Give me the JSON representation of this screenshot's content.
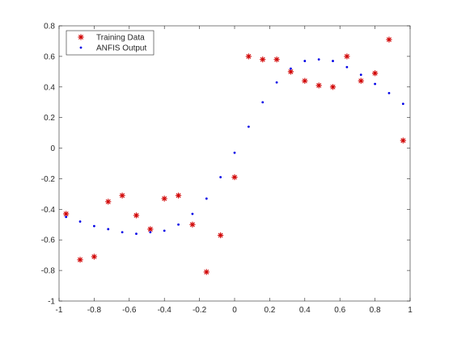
{
  "chart_data": {
    "type": "scatter",
    "title": "",
    "xlabel": "",
    "ylabel": "",
    "xlim": [
      -1,
      1
    ],
    "ylim": [
      -1,
      0.8
    ],
    "xticks": [
      -1,
      -0.8,
      -0.6,
      -0.4,
      -0.2,
      0,
      0.2,
      0.4,
      0.6,
      0.8,
      1
    ],
    "xtick_labels": [
      "-1",
      "-0.8",
      "-0.6",
      "-0.4",
      "-0.2",
      "0",
      "0.2",
      "0.4",
      "0.6",
      "0.8",
      "1"
    ],
    "yticks": [
      -1,
      -0.8,
      -0.6,
      -0.4,
      -0.2,
      0,
      0.2,
      0.4,
      0.6,
      0.8
    ],
    "ytick_labels": [
      "-1",
      "-0.8",
      "-0.6",
      "-0.4",
      "-0.2",
      "0",
      "0.2",
      "0.4",
      "0.6",
      "0.8"
    ],
    "grid": false,
    "legend_position": "top-left",
    "series": [
      {
        "name": "Training Data",
        "marker": "asterisk",
        "color": "#d00000",
        "x": [
          -0.96,
          -0.88,
          -0.8,
          -0.72,
          -0.64,
          -0.56,
          -0.48,
          -0.4,
          -0.32,
          -0.24,
          -0.16,
          -0.08,
          0.0,
          0.08,
          0.16,
          0.24,
          0.32,
          0.4,
          0.48,
          0.56,
          0.64,
          0.72,
          0.8,
          0.88,
          0.96
        ],
        "y": [
          -0.43,
          -0.73,
          -0.71,
          -0.35,
          -0.31,
          -0.44,
          -0.53,
          -0.33,
          -0.31,
          -0.5,
          -0.81,
          -0.57,
          -0.19,
          0.6,
          0.58,
          0.58,
          0.5,
          0.44,
          0.41,
          0.4,
          0.6,
          0.44,
          0.49,
          0.71,
          0.05
        ]
      },
      {
        "name": "ANFIS Output",
        "marker": "dot",
        "color": "#0000e6",
        "x": [
          -0.96,
          -0.88,
          -0.8,
          -0.72,
          -0.64,
          -0.56,
          -0.48,
          -0.4,
          -0.32,
          -0.24,
          -0.16,
          -0.08,
          0.0,
          0.08,
          0.16,
          0.24,
          0.32,
          0.4,
          0.48,
          0.56,
          0.64,
          0.72,
          0.8,
          0.88,
          0.96
        ],
        "y": [
          -0.45,
          -0.48,
          -0.51,
          -0.53,
          -0.55,
          -0.56,
          -0.55,
          -0.54,
          -0.5,
          -0.43,
          -0.33,
          -0.19,
          -0.03,
          0.14,
          0.3,
          0.43,
          0.52,
          0.57,
          0.58,
          0.57,
          0.53,
          0.48,
          0.42,
          0.36,
          0.29
        ]
      }
    ]
  }
}
